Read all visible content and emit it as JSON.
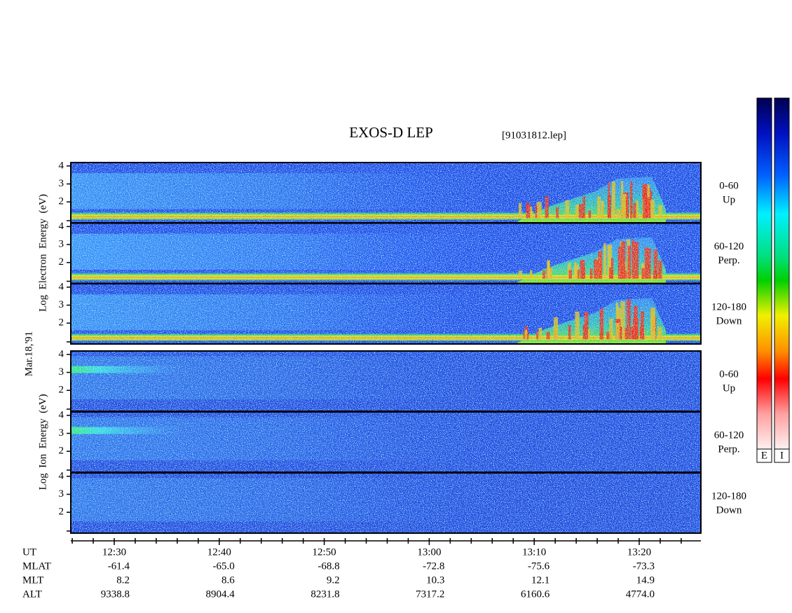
{
  "header": {
    "title": "EXOS-D LEP",
    "file": "[91031812.lep]"
  },
  "date": "Mar.18,'91",
  "energy_axis": {
    "ylim": [
      0.84,
      4.19
    ],
    "yticks": [
      2,
      3,
      4
    ]
  },
  "electron": {
    "label": "Log  Electron  Energy  (eV)",
    "panels": [
      {
        "range": "0-60",
        "direction": "Up"
      },
      {
        "range": "60-120",
        "direction": "Perp."
      },
      {
        "range": "120-180",
        "direction": "Down"
      }
    ]
  },
  "ion": {
    "label": "Log  Ion  Energy  (eV)",
    "panels": [
      {
        "range": "0-60",
        "direction": "Up"
      },
      {
        "range": "60-120",
        "direction": "Perp."
      },
      {
        "range": "120-180",
        "direction": "Down"
      }
    ]
  },
  "colorbars": {
    "labels": [
      "E",
      "I"
    ]
  },
  "ephemeris": {
    "rows": [
      [
        "UT",
        "12:30",
        "12:40",
        "12:50",
        "13:00",
        "13:10",
        "13:20"
      ],
      [
        "MLAT",
        "-61.4",
        "-65.0",
        "-68.8",
        "-72.8",
        "-75.6",
        "-73.3"
      ],
      [
        "MLT",
        "8.2",
        "8.6",
        "9.2",
        "10.3",
        "12.1",
        "14.9"
      ],
      [
        "ALT",
        "9338.8",
        "8904.4",
        "8231.8",
        "7317.2",
        "6160.6",
        "4774.0"
      ]
    ]
  }
}
